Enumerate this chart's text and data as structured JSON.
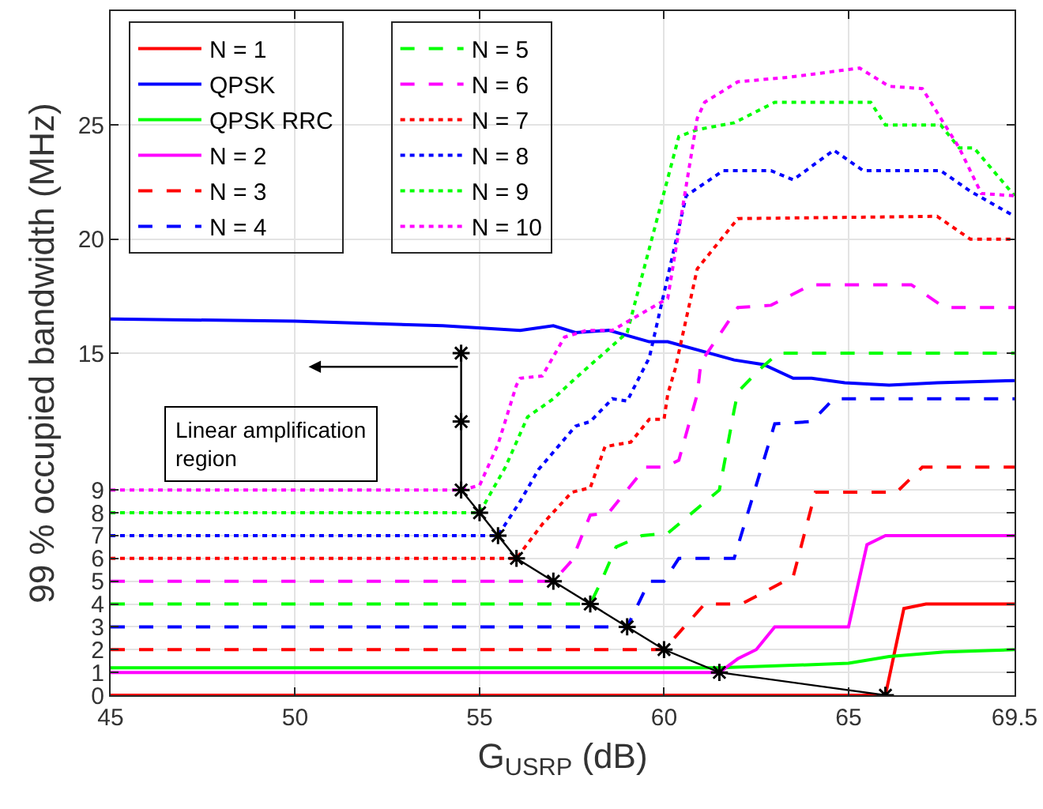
{
  "chart_data": {
    "type": "line",
    "xlabel": "G$_{USRP}$ (dB)",
    "ylabel": "99 % occupied bandwidth (MHz)",
    "xlim": [
      45,
      69.5
    ],
    "xticks": [
      45,
      50,
      55,
      60,
      65,
      69.5
    ],
    "ylim": [
      0,
      30
    ],
    "yticks": [
      0,
      1,
      2,
      3,
      4,
      5,
      6,
      7,
      8,
      9,
      15,
      20,
      25
    ],
    "grid": true,
    "legend": "top left",
    "marker": "none",
    "annotations": [
      "Linear amplification\nregion"
    ],
    "series": [
      {
        "name": "N = 1",
        "color": "#ff0000",
        "line_style": "solid",
        "x": [
          45,
          66,
          66.5,
          67.1,
          69.5
        ],
        "values": [
          0,
          0,
          3.8,
          4,
          4
        ]
      },
      {
        "name": "QPSK",
        "color": "#0000ff",
        "line_style": "solid",
        "x": [
          45,
          50,
          54,
          56.1,
          57,
          57.6,
          58.5,
          59.6,
          60.1,
          61.9,
          62.7,
          63.5,
          64,
          64.9,
          66.1,
          67.4,
          69.5
        ],
        "values": [
          16.5,
          16.4,
          16.2,
          16,
          16.2,
          15.9,
          16,
          15.5,
          15.5,
          14.7,
          14.5,
          13.9,
          13.9,
          13.7,
          13.6,
          13.7,
          13.8
        ]
      },
      {
        "name": "QPSK RRC",
        "color": "#00ff00",
        "line_style": "solid",
        "x": [
          45,
          61.5,
          65,
          66.1,
          67.6,
          69.5
        ],
        "values": [
          1.2,
          1.2,
          1.4,
          1.7,
          1.9,
          2
        ]
      },
      {
        "name": "N = 2",
        "color": "#ff00ff",
        "line_style": "solid",
        "x": [
          45,
          61.5,
          62,
          62.5,
          63,
          65,
          65.5,
          66,
          69.5
        ],
        "values": [
          1,
          1,
          1.6,
          2,
          3,
          3,
          6.6,
          7,
          7
        ]
      },
      {
        "name": "N = 3",
        "color": "#ff0000",
        "line_style": "dashed",
        "x": [
          45,
          60,
          61.1,
          62.1,
          63.5,
          64.1,
          66.3,
          67,
          69.5
        ],
        "values": [
          2,
          2,
          4,
          4,
          5.2,
          8.9,
          8.9,
          10,
          10
        ]
      },
      {
        "name": "N = 4",
        "color": "#0000ff",
        "line_style": "dashed",
        "x": [
          45,
          59,
          59.6,
          60,
          60.4,
          61.9,
          63,
          64,
          64.6,
          69.5
        ],
        "values": [
          3,
          3,
          5,
          5,
          6,
          6,
          11.9,
          12,
          13,
          13
        ]
      },
      {
        "name": "N = 5",
        "color": "#00ff00",
        "line_style": "dashed",
        "x": [
          45,
          58,
          58.3,
          58.7,
          59.4,
          60.1,
          61.5,
          61.9,
          62,
          62.6,
          63.1,
          69.5
        ],
        "values": [
          4,
          4,
          5,
          6.5,
          7,
          7.1,
          9,
          12.5,
          13.3,
          14.3,
          15,
          15
        ]
      },
      {
        "name": "N = 6",
        "color": "#ff00ff",
        "line_style": "dashed",
        "x": [
          45,
          57,
          57.5,
          58,
          58.5,
          59.5,
          60,
          60.4,
          60.9,
          61,
          62,
          62.9,
          64,
          66.7,
          67.6,
          69.5
        ],
        "values": [
          5,
          5,
          5.9,
          7.9,
          8,
          10,
          10,
          10.3,
          13.2,
          14.6,
          17,
          17.1,
          18,
          18,
          17,
          17
        ]
      },
      {
        "name": "N = 7",
        "color": "#ff0000",
        "line_style": "dotted",
        "x": [
          45,
          56,
          56.7,
          57.5,
          58,
          58.4,
          59.1,
          59.6,
          60,
          60.1,
          60.3,
          60.9,
          62,
          67.4,
          68.3,
          69.5
        ],
        "values": [
          6,
          6,
          7.5,
          8.9,
          9.1,
          10.9,
          11.1,
          12.1,
          12.1,
          13.2,
          14.3,
          18.7,
          20.9,
          21,
          20,
          20
        ]
      },
      {
        "name": "N = 8",
        "color": "#0000ff",
        "line_style": "dotted",
        "x": [
          45,
          55.5,
          56.1,
          56.6,
          57.6,
          58,
          58.6,
          59,
          59.6,
          60.6,
          61.6,
          62.9,
          63.5,
          64.6,
          65.4,
          67.5,
          68.3,
          69.5
        ],
        "values": [
          7,
          7,
          8.5,
          9.9,
          11.8,
          12,
          13,
          12.9,
          14.8,
          21.9,
          23,
          23,
          22.6,
          23.9,
          23,
          23,
          22.1,
          21
        ]
      },
      {
        "name": "N = 9",
        "color": "#00ff00",
        "line_style": "dotted",
        "x": [
          45,
          55,
          55.7,
          56.3,
          57,
          57.6,
          59,
          60.4,
          60.9,
          61.9,
          63,
          65.6,
          66,
          67.5,
          68,
          68.4,
          69.5
        ],
        "values": [
          8,
          8,
          10,
          12.2,
          13,
          13.9,
          15.9,
          24.5,
          24.8,
          25.1,
          26,
          26,
          25,
          25,
          24,
          24,
          21.9
        ]
      },
      {
        "name": "N = 10",
        "color": "#ff00ff",
        "line_style": "dotted",
        "x": [
          45,
          54.5,
          55,
          55.5,
          56,
          56.1,
          56.7,
          57.3,
          57.9,
          58.6,
          60.1,
          60.9,
          61.1,
          62,
          63.4,
          65.3,
          66.1,
          67,
          68,
          68.6,
          69.5
        ],
        "values": [
          9,
          9,
          9.2,
          11,
          13.6,
          13.9,
          14,
          15.7,
          16,
          16,
          17.4,
          25.3,
          26,
          26.9,
          27.1,
          27.5,
          26.7,
          26.6,
          24,
          22,
          21.9
        ]
      },
      {
        "color": "#000000",
        "line_style": "solid",
        "marker": "cross",
        "x": [
          54.5,
          54.5,
          54.5,
          55,
          55.5,
          56,
          57,
          58,
          59,
          60,
          61.5,
          66
        ],
        "values": [
          15,
          12,
          9,
          8,
          7,
          6,
          5,
          4,
          3,
          2,
          1,
          0
        ]
      }
    ]
  }
}
